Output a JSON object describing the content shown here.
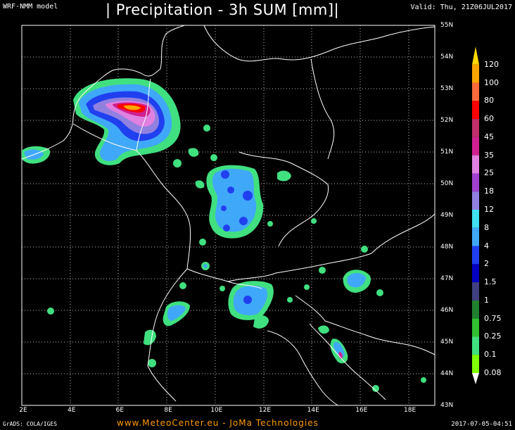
{
  "header": {
    "model": "WRF-NMM model",
    "title": "| Precipitation - 3h SUM [mm]|",
    "valid": "Valid: Thu, 21Z06JUL2017"
  },
  "footer": {
    "grads": "GrADS: COLA/IGES",
    "credit": "www.MeteoCenter.eu  -  JoMa Technologies",
    "timestamp": "2017-07-05-04:51"
  },
  "lat_labels": [
    "55N",
    "54N",
    "53N",
    "52N",
    "51N",
    "50N",
    "49N",
    "48N",
    "47N",
    "46N",
    "45N",
    "44N",
    "43N"
  ],
  "lon_labels": [
    "2E",
    "4E",
    "6E",
    "8E",
    "10E",
    "12E",
    "14E",
    "16E",
    "18E"
  ],
  "legend": {
    "levels": [
      "120",
      "100",
      "80",
      "60",
      "45",
      "35",
      "25",
      "18",
      "12",
      "8",
      "4",
      "2",
      "1.5",
      "1",
      "0.75",
      "0.25",
      "0.1",
      "0.08"
    ],
    "colors": [
      "#ffd700",
      "#ffa500",
      "#ff6a3d",
      "#ff0000",
      "#c0306a",
      "#d02090",
      "#e080e0",
      "#a040d0",
      "#9080e0",
      "#40e0f0",
      "#40a8f8",
      "#2040f0",
      "#0000c0",
      "#404080",
      "#208030",
      "#30c030",
      "#40e080",
      "#80ff00"
    ]
  }
}
